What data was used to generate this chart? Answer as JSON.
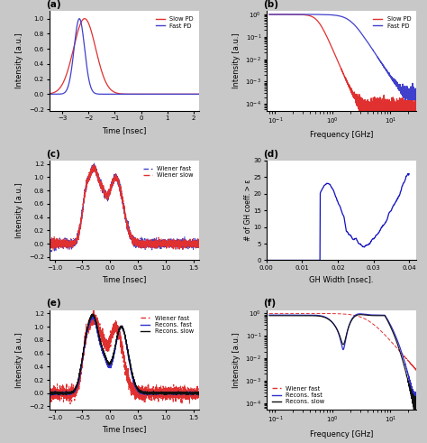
{
  "panel_a": {
    "title": "(a)",
    "xlabel": "Time [nsec]",
    "ylabel": "Intensity [a.u.]",
    "xlim": [
      -3.5,
      2.2
    ],
    "ylim": [
      -0.22,
      1.1
    ],
    "xticks": [
      -3,
      -2,
      -1,
      0,
      1,
      2
    ],
    "yticks": [
      -0.2,
      0,
      0.2,
      0.4,
      0.6,
      0.8,
      1.0
    ],
    "legend": [
      "Slow PD",
      "Fast PD"
    ],
    "slow_color": "#e03030",
    "fast_color": "#4040cc"
  },
  "panel_b": {
    "title": "(b)",
    "xlabel": "Frequency [GHz]",
    "ylabel": "Intensity [a.u.]",
    "legend": [
      "Slow PD",
      "Fast PD"
    ],
    "slow_color": "#e03030",
    "fast_color": "#4040cc"
  },
  "panel_c": {
    "title": "(c)",
    "xlabel": "Time [nsec]",
    "ylabel": "Intensity [a.u.]",
    "xlim": [
      -1.1,
      1.6
    ],
    "ylim": [
      -0.25,
      1.25
    ],
    "xticks": [
      -1,
      -0.5,
      0,
      0.5,
      1,
      1.5
    ],
    "yticks": [
      -0.2,
      0,
      0.2,
      0.4,
      0.6,
      0.8,
      1.0,
      1.2
    ],
    "legend": [
      "Wiener fast",
      "Wiener slow"
    ],
    "fast_color": "#4040cc",
    "slow_color": "#e03030"
  },
  "panel_d": {
    "title": "(d)",
    "xlabel": "GH Width [nsec].",
    "ylabel": "# of GH coeff. > ε",
    "xlim": [
      0,
      0.042
    ],
    "ylim": [
      0,
      30
    ],
    "xticks": [
      0,
      0.01,
      0.02,
      0.03,
      0.04
    ],
    "yticks": [
      0,
      5,
      10,
      15,
      20,
      25,
      30
    ],
    "color": "#1010c0"
  },
  "panel_e": {
    "title": "(e)",
    "xlabel": "Time [nsec]",
    "ylabel": "Intensity [a.u.]",
    "xlim": [
      -1.1,
      1.6
    ],
    "ylim": [
      -0.25,
      1.25
    ],
    "xticks": [
      -1,
      -0.5,
      0,
      0.5,
      1,
      1.5
    ],
    "yticks": [
      -0.2,
      0,
      0.2,
      0.4,
      0.6,
      0.8,
      1.0,
      1.2
    ],
    "legend": [
      "Wiener fast",
      "Recons. fast",
      "Recons. slow"
    ],
    "wiener_color": "#e03030",
    "fast_color": "#3030cc",
    "slow_color": "#101010"
  },
  "panel_f": {
    "title": "(f)",
    "xlabel": "Frequency [GHz]",
    "ylabel": "Intensity [a.u.]",
    "legend": [
      "Wiener fast",
      "Recons. fast",
      "Recons. slow"
    ],
    "wiener_color": "#e03030",
    "fast_color": "#3030cc",
    "slow_color": "#101010"
  },
  "bg_color": "#c8c8c8"
}
